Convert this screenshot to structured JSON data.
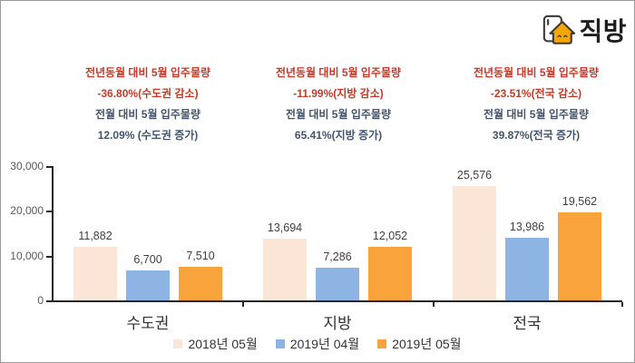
{
  "brand": {
    "logo_text": "직방"
  },
  "colors": {
    "annotation_red": "#C23B2B",
    "annotation_dark": "#44546A",
    "axis": "#262626",
    "axis_label": "#595959",
    "value_label": "#404040",
    "series_peach": "#FBE5D6",
    "series_blue": "#8EB4E3",
    "series_orange": "#F8A33B"
  },
  "annotations": [
    {
      "lines": [
        "전년동월 대비 5월 입주물량",
        "-36.80%(수도권 감소)",
        "전월 대비 5월 입주물량",
        "12.09% (수도권 증가)"
      ]
    },
    {
      "lines": [
        "전년동월 대비 5월 입주물량",
        "-11.99%(지방 감소)",
        "전월 대비 5월 입주물량",
        "65.41%(지방 증가)"
      ]
    },
    {
      "lines": [
        "전년동월 대비 5월 입주물량",
        "-23.51%(전국 감소)",
        "전월 대비 5월 입주물량",
        "39.87%(전국 증가)"
      ]
    }
  ],
  "chart_data": {
    "type": "bar",
    "categories": [
      "수도권",
      "지방",
      "전국"
    ],
    "series": [
      {
        "name": "2018년 05월",
        "color": "#FBE5D6",
        "values": [
          11882,
          13694,
          25576
        ]
      },
      {
        "name": "2019년 04월",
        "color": "#8EB4E3",
        "values": [
          6700,
          7286,
          13986
        ]
      },
      {
        "name": "2019년 05월",
        "color": "#F8A33B",
        "values": [
          7510,
          12052,
          19562
        ]
      }
    ],
    "value_labels": [
      [
        "11,882",
        "6,700",
        "7,510"
      ],
      [
        "13,694",
        "7,286",
        "12,052"
      ],
      [
        "25,576",
        "13,986",
        "19,562"
      ]
    ],
    "ylim": [
      0,
      30000
    ],
    "yticks": [
      "0",
      "10,000",
      "20,000",
      "30,000"
    ],
    "grid": false,
    "legend_position": "bottom"
  }
}
